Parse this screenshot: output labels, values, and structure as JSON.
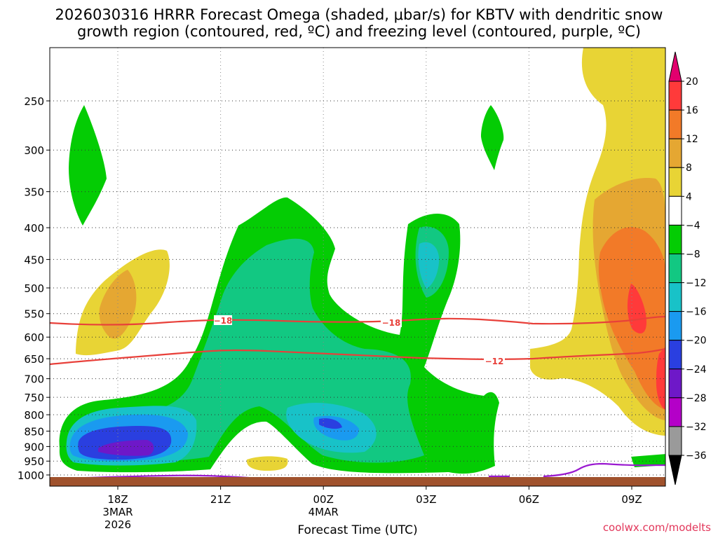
{
  "chart_data": {
    "type": "heatmap",
    "title_line1": "2026030316 HRRR Forecast Omega (shaded, μbar/s) for KBTV with dendritic snow",
    "title_line2": "growth region (contoured, red, ºC) and freezing level (contoured, purple, ºC)",
    "xlabel": "Forecast Time (UTC)",
    "credit": "coolwx.com/modelts",
    "x_ticks": [
      {
        "label": "18Z",
        "label2": "3MAR",
        "label3": "2026",
        "hour": 18
      },
      {
        "label": "21Z",
        "label2": "",
        "label3": "",
        "hour": 21
      },
      {
        "label": "00Z",
        "label2": "4MAR",
        "label3": "",
        "hour": 24
      },
      {
        "label": "03Z",
        "label2": "",
        "label3": "",
        "hour": 27
      },
      {
        "label": "06Z",
        "label2": "",
        "label3": "",
        "hour": 30
      },
      {
        "label": "09Z",
        "label2": "",
        "label3": "",
        "hour": 33
      }
    ],
    "x_range_hours": [
      16,
      34
    ],
    "y_ticks": [
      250,
      300,
      350,
      400,
      450,
      500,
      550,
      600,
      650,
      700,
      750,
      800,
      850,
      900,
      950,
      1000
    ],
    "y_range_mb": [
      200,
      1020
    ],
    "grid": true,
    "colorbar": {
      "levels": [
        "20",
        "16",
        "12",
        "8",
        "4",
        "−4",
        "−8",
        "−12",
        "−16",
        "−20",
        "−24",
        "−28",
        "−32",
        "−36"
      ],
      "colors": [
        "#e2006e",
        "#ff3a3a",
        "#f27a28",
        "#e5a732",
        "#e8d435",
        "#ffffff",
        "#04cc04",
        "#12c882",
        "#18c2c8",
        "#1a9af0",
        "#2a3fe0",
        "#6e18c8",
        "#b400c8",
        "#9a9a9a",
        "#000000"
      ]
    },
    "contour_labels": [
      "−18",
      "−18",
      "−12"
    ]
  }
}
